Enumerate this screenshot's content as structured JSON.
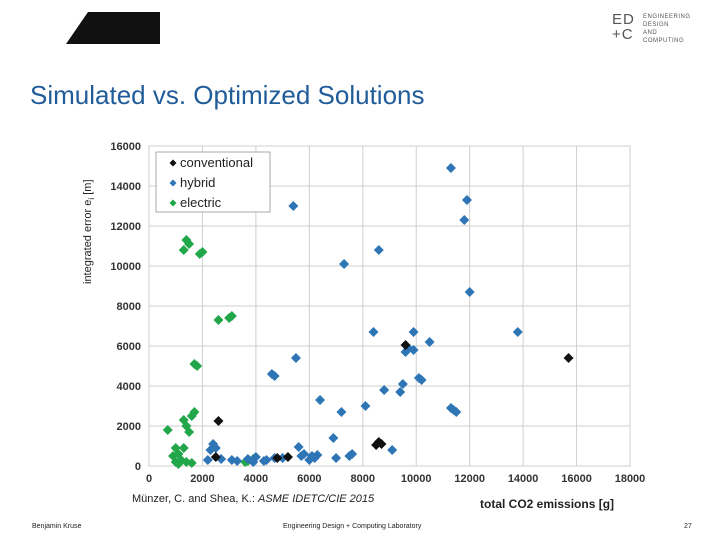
{
  "header": {
    "brand_mark_line1": "ED",
    "brand_mark_line2": "+C",
    "brand_text_lines": [
      "ENGINEERING",
      "DESIGN",
      "AND",
      "COMPUTING"
    ]
  },
  "slide": {
    "title": "Simulated vs. Optimized Solutions",
    "citation_plain": "Münzer, C. and Shea, K.: ",
    "citation_italic": "ASME IDETC/CIE 2015",
    "footer_author": "Benjamin Kruse",
    "footer_lab": "Engineering Design + Computing Laboratory",
    "page_number": "27"
  },
  "colors": {
    "title": "#1f5c99",
    "conventional": "#111111",
    "hybrid": "#2e75b6",
    "electric": "#22a64a"
  },
  "chart_data": {
    "type": "scatter",
    "title": "",
    "xlabel": "total CO2 emissions [g]",
    "ylabel": "integrated error e",
    "ylabel_subscript": "i",
    "ylabel_unit": " [m]",
    "xlim": [
      0,
      18000
    ],
    "ylim": [
      0,
      16000
    ],
    "x_ticks": [
      0,
      2000,
      4000,
      6000,
      8000,
      10000,
      12000,
      14000,
      16000,
      18000
    ],
    "y_ticks": [
      0,
      2000,
      4000,
      6000,
      8000,
      10000,
      12000,
      14000,
      16000
    ],
    "grid": true,
    "legend_position": "top-left",
    "series": [
      {
        "name": "conventional",
        "points": [
          [
            2600,
            2250
          ],
          [
            9600,
            6050
          ],
          [
            15700,
            5400
          ],
          [
            8600,
            1200
          ],
          [
            8700,
            1100
          ],
          [
            8500,
            1050
          ],
          [
            2500,
            450
          ],
          [
            4800,
            400
          ],
          [
            5200,
            450
          ]
        ]
      },
      {
        "name": "hybrid",
        "points": [
          [
            5400,
            13000
          ],
          [
            11300,
            14900
          ],
          [
            11800,
            12300
          ],
          [
            11900,
            13300
          ],
          [
            12000,
            8700
          ],
          [
            7300,
            10100
          ],
          [
            8600,
            10800
          ],
          [
            8400,
            6700
          ],
          [
            9900,
            6700
          ],
          [
            10500,
            6200
          ],
          [
            13800,
            6700
          ],
          [
            9600,
            5700
          ],
          [
            9900,
            5800
          ],
          [
            9700,
            5900
          ],
          [
            5500,
            5400
          ],
          [
            4600,
            4600
          ],
          [
            4700,
            4500
          ],
          [
            10100,
            4400
          ],
          [
            10200,
            4300
          ],
          [
            9500,
            4100
          ],
          [
            9400,
            3700
          ],
          [
            8800,
            3800
          ],
          [
            6400,
            3300
          ],
          [
            8100,
            3000
          ],
          [
            7200,
            2700
          ],
          [
            11300,
            2900
          ],
          [
            11400,
            2800
          ],
          [
            11500,
            2700
          ],
          [
            6900,
            1400
          ],
          [
            7600,
            600
          ],
          [
            7500,
            500
          ],
          [
            9100,
            800
          ],
          [
            2400,
            1100
          ],
          [
            2300,
            800
          ],
          [
            2500,
            900
          ],
          [
            2700,
            350
          ],
          [
            3100,
            300
          ],
          [
            3300,
            250
          ],
          [
            3700,
            350
          ],
          [
            4000,
            450
          ],
          [
            4300,
            250
          ],
          [
            4400,
            300
          ],
          [
            5000,
            400
          ],
          [
            5600,
            950
          ],
          [
            5700,
            500
          ],
          [
            5800,
            600
          ],
          [
            6100,
            500
          ],
          [
            6300,
            550
          ],
          [
            6200,
            400
          ],
          [
            6000,
            300
          ],
          [
            4700,
            400
          ],
          [
            7000,
            400
          ],
          [
            3900,
            200
          ],
          [
            2200,
            300
          ]
        ]
      },
      {
        "name": "electric",
        "points": [
          [
            1400,
            11300
          ],
          [
            1300,
            10800
          ],
          [
            1500,
            11100
          ],
          [
            2000,
            10700
          ],
          [
            1900,
            10600
          ],
          [
            3100,
            7500
          ],
          [
            3000,
            7400
          ],
          [
            2600,
            7300
          ],
          [
            1800,
            5000
          ],
          [
            1700,
            5100
          ],
          [
            1700,
            2700
          ],
          [
            1600,
            2500
          ],
          [
            1300,
            2300
          ],
          [
            1400,
            2000
          ],
          [
            1500,
            1700
          ],
          [
            700,
            1800
          ],
          [
            1300,
            900
          ],
          [
            1000,
            900
          ],
          [
            1100,
            600
          ],
          [
            900,
            500
          ],
          [
            1200,
            300
          ],
          [
            1000,
            200
          ],
          [
            1400,
            200
          ],
          [
            1600,
            150
          ],
          [
            1100,
            100
          ],
          [
            3700,
            250
          ],
          [
            3900,
            350
          ],
          [
            3600,
            200
          ]
        ]
      }
    ]
  }
}
